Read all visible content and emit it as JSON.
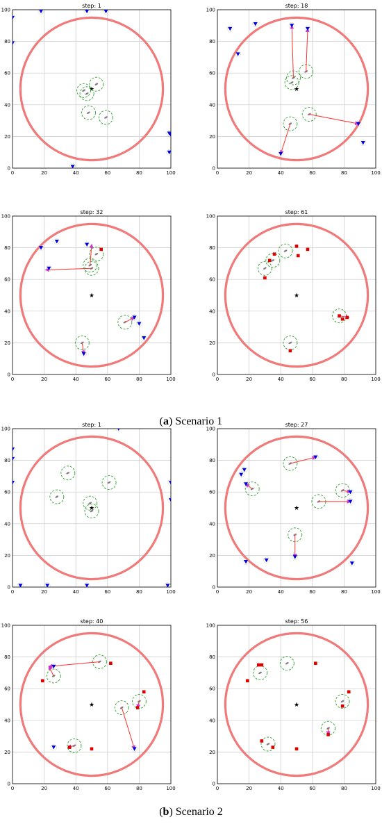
{
  "figure": {
    "caption_a": {
      "paren_open": "(",
      "letter": "a",
      "rest": ") Scenario 1"
    },
    "caption_b": {
      "paren_open": "(",
      "letter": "b",
      "rest": ") Scenario 2"
    }
  },
  "colors": {
    "circle": "#f07a7a",
    "grid": "#c8c8c8",
    "uav": "#7f7f7f",
    "sensor_range": "#2ca02c",
    "target_active": "#0000dd",
    "target_captured": "#e00000",
    "arrow": "#ff3030",
    "arrow_head": "#cc33cc",
    "center_mark": "#000000"
  },
  "chart_data": [
    {
      "type": "scatter",
      "title": "step: 1",
      "xlim": [
        0,
        100
      ],
      "ylim": [
        0,
        100
      ],
      "xticks": [
        0,
        20,
        40,
        60,
        80,
        100
      ],
      "yticks": [
        0,
        20,
        40,
        60,
        80,
        100
      ],
      "grid": true,
      "boundary_circle": {
        "cx": 50,
        "cy": 50,
        "r": 45
      },
      "center": [
        50,
        50
      ],
      "uavs": [
        [
          47,
          47
        ],
        [
          53,
          53
        ],
        [
          48,
          35
        ],
        [
          59,
          32
        ],
        [
          45,
          49
        ]
      ],
      "targets_active": [
        [
          0,
          95
        ],
        [
          0,
          79
        ],
        [
          18,
          99
        ],
        [
          47,
          99
        ],
        [
          59,
          99
        ],
        [
          99,
          22
        ],
        [
          99,
          10
        ],
        [
          38,
          1
        ],
        [
          100,
          21
        ]
      ],
      "targets_captured": [],
      "arrows": []
    },
    {
      "type": "scatter",
      "title": "step: 18",
      "xlim": [
        0,
        100
      ],
      "ylim": [
        0,
        100
      ],
      "xticks": [
        0,
        20,
        40,
        60,
        80,
        100
      ],
      "yticks": [
        0,
        20,
        40,
        60,
        80,
        100
      ],
      "grid": true,
      "boundary_circle": {
        "cx": 50,
        "cy": 50,
        "r": 45
      },
      "center": [
        50,
        50
      ],
      "uavs": [
        [
          48,
          57
        ],
        [
          47,
          54
        ],
        [
          56,
          61
        ],
        [
          46,
          28
        ],
        [
          58,
          34
        ]
      ],
      "targets_active": [
        [
          8,
          88
        ],
        [
          24,
          91
        ],
        [
          13,
          72
        ],
        [
          47,
          90
        ],
        [
          57,
          88
        ],
        [
          40,
          9
        ],
        [
          89,
          28
        ],
        [
          92,
          16
        ]
      ],
      "targets_captured": [],
      "arrows": [
        [
          [
            48,
            57
          ],
          [
            47,
            90
          ]
        ],
        [
          [
            56,
            61
          ],
          [
            57,
            88
          ]
        ],
        [
          [
            46,
            28
          ],
          [
            40,
            9
          ]
        ],
        [
          [
            58,
            34
          ],
          [
            89,
            28
          ]
        ]
      ]
    },
    {
      "type": "scatter",
      "title": "step: 32",
      "xlim": [
        0,
        100
      ],
      "ylim": [
        0,
        100
      ],
      "xticks": [
        0,
        20,
        40,
        60,
        80,
        100
      ],
      "yticks": [
        0,
        20,
        40,
        60,
        80,
        100
      ],
      "grid": true,
      "boundary_circle": {
        "cx": 50,
        "cy": 50,
        "r": 45
      },
      "center": [
        50,
        50
      ],
      "uavs": [
        [
          53,
          76
        ],
        [
          49,
          69
        ],
        [
          50,
          67
        ],
        [
          71,
          33
        ],
        [
          44,
          20
        ]
      ],
      "targets_active": [
        [
          18,
          80
        ],
        [
          28,
          84
        ],
        [
          47,
          82
        ],
        [
          23,
          67
        ],
        [
          80,
          32
        ],
        [
          83,
          23
        ],
        [
          45,
          13
        ],
        [
          77,
          36
        ]
      ],
      "targets_captured": [
        [
          56,
          79
        ]
      ],
      "arrows": [
        [
          [
            50,
            67
          ],
          [
            21,
            66
          ]
        ],
        [
          [
            49,
            69
          ],
          [
            50,
            82
          ]
        ],
        [
          [
            71,
            33
          ],
          [
            77,
            36
          ]
        ],
        [
          [
            44,
            20
          ],
          [
            45,
            13
          ]
        ]
      ]
    },
    {
      "type": "scatter",
      "title": "step: 61",
      "xlim": [
        0,
        100
      ],
      "ylim": [
        0,
        100
      ],
      "xticks": [
        0,
        20,
        40,
        60,
        80,
        100
      ],
      "yticks": [
        0,
        20,
        40,
        60,
        80,
        100
      ],
      "grid": true,
      "boundary_circle": {
        "cx": 50,
        "cy": 50,
        "r": 45
      },
      "center": [
        50,
        50
      ],
      "uavs": [
        [
          43,
          78
        ],
        [
          35,
          72
        ],
        [
          30,
          67
        ],
        [
          77,
          37
        ],
        [
          46,
          20
        ]
      ],
      "targets_active": [],
      "targets_captured": [
        [
          50,
          81
        ],
        [
          57,
          79
        ],
        [
          51,
          75
        ],
        [
          33,
          72
        ],
        [
          36,
          76
        ],
        [
          30,
          61
        ],
        [
          79,
          35
        ],
        [
          82,
          36
        ],
        [
          77,
          37
        ],
        [
          46,
          15
        ]
      ],
      "arrows": [
        [
          [
            77,
            37
          ],
          [
            83,
            36
          ]
        ]
      ]
    },
    {
      "type": "scatter",
      "title": "step: 1",
      "xlim": [
        0,
        100
      ],
      "ylim": [
        0,
        100
      ],
      "xticks": [
        0,
        20,
        40,
        60,
        80,
        100
      ],
      "yticks": [
        0,
        20,
        40,
        60,
        80,
        100
      ],
      "grid": true,
      "boundary_circle": {
        "cx": 50,
        "cy": 50,
        "r": 45
      },
      "center": [
        50,
        50
      ],
      "uavs": [
        [
          35,
          72
        ],
        [
          61,
          66
        ],
        [
          28,
          57
        ],
        [
          49,
          53
        ],
        [
          50,
          48
        ]
      ],
      "targets_active": [
        [
          0,
          87
        ],
        [
          0,
          81
        ],
        [
          0,
          66
        ],
        [
          67,
          100
        ],
        [
          100,
          66
        ],
        [
          100,
          55
        ],
        [
          5,
          1
        ],
        [
          22,
          1
        ],
        [
          47,
          1
        ],
        [
          98,
          1
        ]
      ],
      "targets_captured": [],
      "arrows": []
    },
    {
      "type": "scatter",
      "title": "step: 27",
      "xlim": [
        0,
        100
      ],
      "ylim": [
        0,
        100
      ],
      "xticks": [
        0,
        20,
        40,
        60,
        80,
        100
      ],
      "yticks": [
        0,
        20,
        40,
        60,
        80,
        100
      ],
      "grid": true,
      "boundary_circle": {
        "cx": 50,
        "cy": 50,
        "r": 45
      },
      "center": [
        50,
        50
      ],
      "uavs": [
        [
          46,
          78
        ],
        [
          22,
          62
        ],
        [
          79,
          61
        ],
        [
          64,
          54
        ],
        [
          49,
          33
        ]
      ],
      "targets_active": [
        [
          17,
          74
        ],
        [
          15,
          71
        ],
        [
          62,
          82
        ],
        [
          18,
          65
        ],
        [
          84,
          60
        ],
        [
          84,
          54
        ],
        [
          49,
          19
        ],
        [
          31,
          17
        ],
        [
          18,
          16
        ],
        [
          85,
          15
        ]
      ],
      "targets_captured": [],
      "arrows": [
        [
          [
            46,
            78
          ],
          [
            62,
            82
          ]
        ],
        [
          [
            22,
            62
          ],
          [
            18,
            65
          ]
        ],
        [
          [
            79,
            61
          ],
          [
            84,
            60
          ]
        ],
        [
          [
            64,
            54
          ],
          [
            84,
            54
          ]
        ],
        [
          [
            49,
            33
          ],
          [
            49,
            19
          ]
        ]
      ]
    },
    {
      "type": "scatter",
      "title": "step: 40",
      "xlim": [
        0,
        100
      ],
      "ylim": [
        0,
        100
      ],
      "xticks": [
        0,
        20,
        40,
        60,
        80,
        100
      ],
      "yticks": [
        0,
        20,
        40,
        60,
        80,
        100
      ],
      "grid": true,
      "boundary_circle": {
        "cx": 50,
        "cy": 50,
        "r": 45
      },
      "center": [
        50,
        50
      ],
      "uavs": [
        [
          55,
          77
        ],
        [
          26,
          68
        ],
        [
          69,
          48
        ],
        [
          80,
          52
        ],
        [
          39,
          24
        ]
      ],
      "targets_active": [
        [
          26,
          74
        ],
        [
          77,
          22
        ],
        [
          26,
          23
        ]
      ],
      "targets_captured": [
        [
          62,
          76
        ],
        [
          19,
          65
        ],
        [
          83,
          58
        ],
        [
          79,
          48
        ],
        [
          36,
          23
        ],
        [
          50,
          22
        ]
      ],
      "arrows": [
        [
          [
            55,
            77
          ],
          [
            23,
            74
          ]
        ],
        [
          [
            26,
            68
          ],
          [
            23,
            74
          ]
        ],
        [
          [
            69,
            48
          ],
          [
            77,
            22
          ]
        ],
        [
          [
            39,
            24
          ],
          [
            35,
            23
          ]
        ],
        [
          [
            80,
            52
          ],
          [
            79,
            48
          ]
        ]
      ]
    },
    {
      "type": "scatter",
      "title": "step: 56",
      "xlim": [
        0,
        100
      ],
      "ylim": [
        0,
        100
      ],
      "xticks": [
        0,
        20,
        40,
        60,
        80,
        100
      ],
      "yticks": [
        0,
        20,
        40,
        60,
        80,
        100
      ],
      "grid": true,
      "boundary_circle": {
        "cx": 50,
        "cy": 50,
        "r": 45
      },
      "center": [
        50,
        50
      ],
      "uavs": [
        [
          44,
          76
        ],
        [
          27,
          70
        ],
        [
          79,
          52
        ],
        [
          70,
          35
        ],
        [
          32,
          25
        ]
      ],
      "targets_active": [],
      "targets_captured": [
        [
          62,
          76
        ],
        [
          26,
          75
        ],
        [
          28,
          75
        ],
        [
          19,
          65
        ],
        [
          83,
          58
        ],
        [
          79,
          49
        ],
        [
          70,
          31
        ],
        [
          28,
          27
        ],
        [
          35,
          23
        ],
        [
          50,
          22
        ]
      ],
      "arrows": [
        [
          [
            70,
            35
          ],
          [
            70,
            31
          ]
        ]
      ]
    }
  ]
}
